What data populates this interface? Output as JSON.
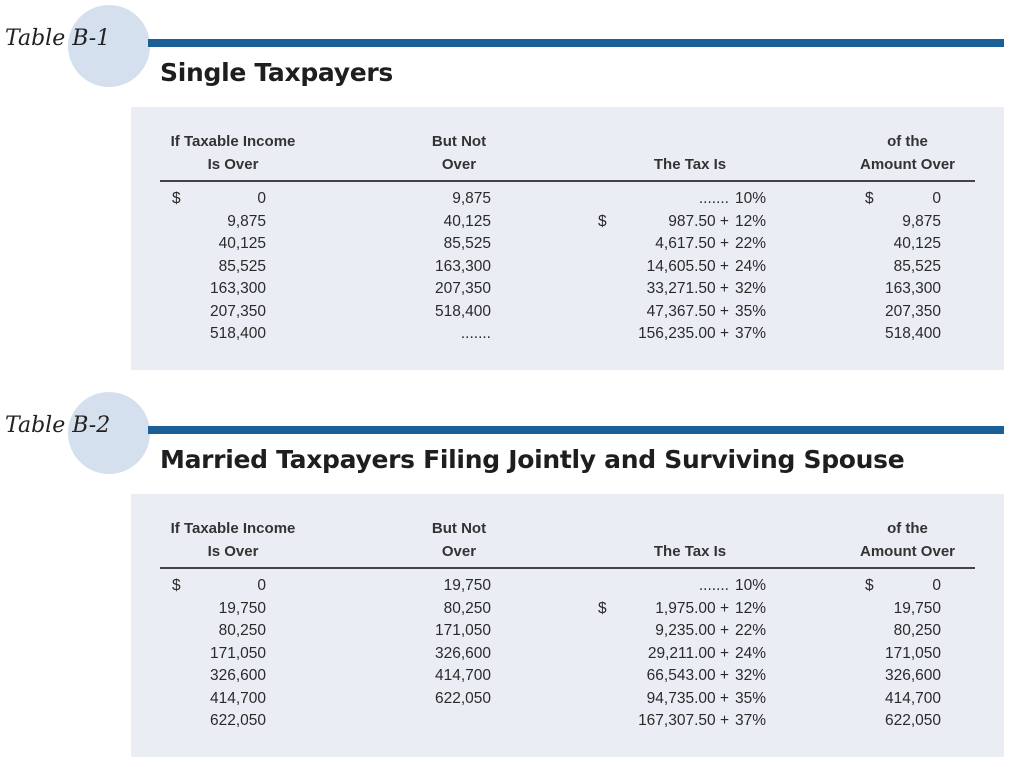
{
  "colors": {
    "accent_bar": "#1a5f96",
    "circle": "#d4e0ed",
    "panel": "#eaeef4"
  },
  "headers": {
    "col1": [
      "If Taxable Income",
      "Is Over"
    ],
    "col2": [
      "But Not",
      "Over"
    ],
    "col3": "The Tax Is",
    "col4": [
      "of the",
      "Amount Over"
    ]
  },
  "tables": [
    {
      "label": "Table B-1",
      "title": "Single Taxpayers",
      "rows": [
        {
          "dollar1": "$",
          "over": "0",
          "not_over": "9,875",
          "dollar3": "",
          "base": ".......",
          "rate": "10%",
          "dollar4": "$",
          "amount_over": "0"
        },
        {
          "dollar1": "",
          "over": "9,875",
          "not_over": "40,125",
          "dollar3": "$",
          "base": "987.50 +",
          "rate": "12%",
          "dollar4": "",
          "amount_over": "9,875"
        },
        {
          "dollar1": "",
          "over": "40,125",
          "not_over": "85,525",
          "dollar3": "",
          "base": "4,617.50 +",
          "rate": "22%",
          "dollar4": "",
          "amount_over": "40,125"
        },
        {
          "dollar1": "",
          "over": "85,525",
          "not_over": "163,300",
          "dollar3": "",
          "base": "14,605.50 +",
          "rate": "24%",
          "dollar4": "",
          "amount_over": "85,525"
        },
        {
          "dollar1": "",
          "over": "163,300",
          "not_over": "207,350",
          "dollar3": "",
          "base": "33,271.50 +",
          "rate": "32%",
          "dollar4": "",
          "amount_over": "163,300"
        },
        {
          "dollar1": "",
          "over": "207,350",
          "not_over": "518,400",
          "dollar3": "",
          "base": "47,367.50 +",
          "rate": "35%",
          "dollar4": "",
          "amount_over": "207,350"
        },
        {
          "dollar1": "",
          "over": "518,400",
          "not_over": ".......",
          "dollar3": "",
          "base": "156,235.00 +",
          "rate": "37%",
          "dollar4": "",
          "amount_over": "518,400"
        }
      ]
    },
    {
      "label": "Table B-2",
      "title": "Married Taxpayers Filing Jointly and Surviving Spouse",
      "rows": [
        {
          "dollar1": "$",
          "over": "0",
          "not_over": "19,750",
          "dollar3": "",
          "base": ".......",
          "rate": "10%",
          "dollar4": "$",
          "amount_over": "0"
        },
        {
          "dollar1": "",
          "over": "19,750",
          "not_over": "80,250",
          "dollar3": "$",
          "base": "1,975.00 +",
          "rate": "12%",
          "dollar4": "",
          "amount_over": "19,750"
        },
        {
          "dollar1": "",
          "over": "80,250",
          "not_over": "171,050",
          "dollar3": "",
          "base": "9,235.00 +",
          "rate": "22%",
          "dollar4": "",
          "amount_over": "80,250"
        },
        {
          "dollar1": "",
          "over": "171,050",
          "not_over": "326,600",
          "dollar3": "",
          "base": "29,211.00 +",
          "rate": "24%",
          "dollar4": "",
          "amount_over": "171,050"
        },
        {
          "dollar1": "",
          "over": "326,600",
          "not_over": "414,700",
          "dollar3": "",
          "base": "66,543.00 +",
          "rate": "32%",
          "dollar4": "",
          "amount_over": "326,600"
        },
        {
          "dollar1": "",
          "over": "414,700",
          "not_over": "622,050",
          "dollar3": "",
          "base": "94,735.00 +",
          "rate": "35%",
          "dollar4": "",
          "amount_over": "414,700"
        },
        {
          "dollar1": "",
          "over": "622,050",
          "not_over": "",
          "dollar3": "",
          "base": "167,307.50 +",
          "rate": "37%",
          "dollar4": "",
          "amount_over": "622,050"
        }
      ]
    }
  ]
}
